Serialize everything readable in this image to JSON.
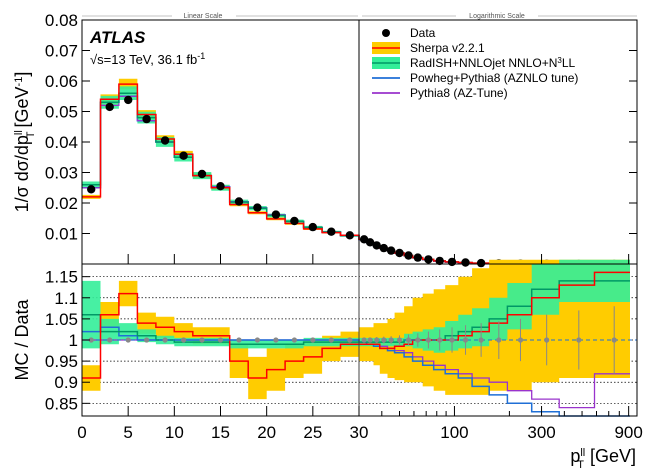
{
  "chart_data": {
    "type": "line",
    "scale_labels": {
      "linear": "Linear Scale",
      "log": "Logarithmic Scale"
    },
    "experiment_label": "ATLAS",
    "energy_label": "√s=13 TeV, 36.1 fb",
    "energy_label_superscript": "-1",
    "top_panel": {
      "ylabel": "1/σ dσ/dp",
      "ylabel_sup": "ll",
      "ylabel_sub": "T",
      "ylabel_tail": "[GeV",
      "ylabel_tail_sup": "-1",
      "ylabel_end": "]",
      "ylim": [
        0,
        0.08
      ],
      "yticks": [
        "0.01",
        "0.02",
        "0.03",
        "0.04",
        "0.05",
        "0.06",
        "0.07",
        "0.08"
      ]
    },
    "ratio_panel": {
      "ylabel": "MC / Data",
      "ylim": [
        0.82,
        1.18
      ],
      "yticks": [
        "0.85",
        "0.9",
        "0.95",
        "1",
        "1.05",
        "1.1",
        "1.15"
      ]
    },
    "x_axis": {
      "label": "p",
      "label_sup": "ll",
      "label_sub": "T",
      "label_tail": "[GeV]",
      "linear_range": [
        0,
        30
      ],
      "log_range": [
        30,
        1000
      ],
      "linear_ticks": [
        "0",
        "5",
        "10",
        "15",
        "20",
        "25",
        "30"
      ],
      "log_ticks": [
        "100",
        "300",
        "900"
      ]
    },
    "legend": [
      {
        "name": "Data",
        "style": "marker",
        "color": "#000000"
      },
      {
        "name": "Sherpa v2.2.1",
        "style": "band",
        "color": "#ff0000",
        "band_color": "#ffcc00"
      },
      {
        "name": "RadISH+NNLOjet NNLO+N",
        "name_sup": "3",
        "name_tail": "LL",
        "style": "band",
        "color": "#009966",
        "band_color": "#33ee99"
      },
      {
        "name": "Powheg+Pythia8 (AZNLO tune)",
        "style": "line",
        "color": "#1f6fd6"
      },
      {
        "name": "Pythia8 (AZ-Tune)",
        "style": "line",
        "color": "#9933cc"
      }
    ],
    "x": [
      1,
      3,
      5,
      7,
      9,
      11,
      13,
      15,
      17,
      19,
      21,
      23,
      25,
      27,
      29,
      32,
      34.5,
      37.5,
      41,
      45,
      50,
      56,
      63,
      72,
      83,
      97,
      115,
      140,
      175,
      230,
      320,
      480,
      750
    ],
    "bin_edges": [
      0,
      2,
      4,
      6,
      8,
      10,
      12,
      14,
      16,
      18,
      20,
      22,
      24,
      26,
      28,
      30,
      33,
      36,
      39,
      43,
      47,
      53,
      59,
      67,
      77,
      89,
      105,
      125,
      155,
      195,
      265,
      375,
      585,
      915
    ],
    "series": [
      {
        "name": "Data",
        "type": "scatter",
        "color": "#000000",
        "values": [
          0.0245,
          0.0515,
          0.0538,
          0.0475,
          0.0405,
          0.0355,
          0.0295,
          0.0255,
          0.0205,
          0.0185,
          0.0162,
          0.0141,
          0.0121,
          0.0106,
          0.0094,
          0.0081,
          0.0071,
          0.0061,
          0.0052,
          0.0044,
          0.0036,
          0.0028,
          0.0021,
          0.0015,
          0.001,
          0.0007,
          0.0005,
          0.0003,
          0.0002,
          0.0001,
          5e-05,
          2e-05,
          1e-05
        ]
      },
      {
        "name": "Sherpa v2.2.1",
        "type": "line",
        "color": "#ff0000",
        "values": [
          0.022,
          0.054,
          0.059,
          0.049,
          0.041,
          0.036,
          0.029,
          0.025,
          0.0195,
          0.0168,
          0.0148,
          0.0133,
          0.0115,
          0.0103,
          0.0094,
          0.0081,
          0.0071,
          0.0061,
          0.0052,
          0.0044,
          0.0036,
          0.0028,
          0.0021,
          0.0015,
          0.001,
          0.0007,
          0.0005,
          0.0003,
          0.0002,
          0.0001,
          5e-05,
          2e-05,
          1e-05
        ]
      },
      {
        "name": "RadISH+NNLOjet NNLO+N3LL",
        "type": "line",
        "color": "#009966",
        "values": [
          0.026,
          0.053,
          0.056,
          0.048,
          0.04,
          0.035,
          0.029,
          0.025,
          0.0203,
          0.0183,
          0.0159,
          0.014,
          0.012,
          0.0105,
          0.0093,
          0.0081,
          0.0071,
          0.0061,
          0.0052,
          0.0044,
          0.0036,
          0.0028,
          0.0021,
          0.0015,
          0.001,
          0.0007,
          0.0005,
          0.0003,
          0.0002,
          0.0001,
          5e-05,
          2e-05,
          1e-05
        ]
      },
      {
        "name": "Powheg+Pythia8 (AZNLO tune)",
        "type": "line",
        "color": "#1f6fd6",
        "values": [
          0.025,
          0.053,
          0.055,
          0.047,
          0.04,
          0.035,
          0.029,
          0.0253,
          0.0204,
          0.0184,
          0.0161,
          0.014,
          0.012,
          0.0105,
          0.0093,
          0.008,
          0.007,
          0.006,
          0.0051,
          0.0043,
          0.0035,
          0.0027,
          0.002,
          0.0014,
          0.0009,
          0.0006,
          0.0004,
          0.0002,
          0.0001,
          7e-05,
          3e-05,
          1e-05,
          5e-06
        ]
      },
      {
        "name": "Pythia8 (AZ-Tune)",
        "type": "line",
        "color": "#9933cc",
        "values": [
          0.025,
          0.052,
          0.055,
          0.047,
          0.04,
          0.035,
          0.029,
          0.0253,
          0.0204,
          0.0184,
          0.0161,
          0.014,
          0.012,
          0.0105,
          0.0093,
          0.008,
          0.007,
          0.006,
          0.0051,
          0.0043,
          0.0035,
          0.0027,
          0.002,
          0.0014,
          0.0009,
          0.0006,
          0.0004,
          0.0002,
          0.0001,
          7e-05,
          3e-05,
          1e-05,
          5e-06
        ]
      }
    ],
    "ratio": {
      "data_errors": [
        0.004,
        0.004,
        0.003,
        0.004,
        0.004,
        0.004,
        0.004,
        0.004,
        0.004,
        0.004,
        0.004,
        0.004,
        0.004,
        0.004,
        0.004,
        0.005,
        0.006,
        0.007,
        0.008,
        0.009,
        0.011,
        0.013,
        0.016,
        0.02,
        0.025,
        0.03,
        0.035,
        0.04,
        0.045,
        0.05,
        0.06,
        0.07,
        0.08
      ],
      "sherpa": [
        0.91,
        1.06,
        1.11,
        1.04,
        1.03,
        1.02,
        1.01,
        1.01,
        0.95,
        0.91,
        0.93,
        0.95,
        0.96,
        0.98,
        0.99,
        0.99,
        0.99,
        0.99,
        0.98,
        0.98,
        0.985,
        0.99,
        1.0,
        1.0,
        1.0,
        1.0,
        1.01,
        1.02,
        1.04,
        1.06,
        1.1,
        1.13,
        1.16
      ],
      "sherpa_band": [
        0.03,
        0.03,
        0.03,
        0.025,
        0.025,
        0.02,
        0.02,
        0.02,
        0.04,
        0.05,
        0.05,
        0.04,
        0.04,
        0.03,
        0.03,
        0.04,
        0.04,
        0.05,
        0.06,
        0.07,
        0.08,
        0.09,
        0.1,
        0.11,
        0.12,
        0.13,
        0.14,
        0.15,
        0.16,
        0.18,
        0.2,
        0.22,
        0.25
      ],
      "radish": [
        1.06,
        1.02,
        1.02,
        1.01,
        1.0,
        0.995,
        0.995,
        0.995,
        0.99,
        0.99,
        0.99,
        0.99,
        0.995,
        0.995,
        0.995,
        0.995,
        0.995,
        0.995,
        0.995,
        0.995,
        0.995,
        1.0,
        1.0,
        1.0,
        1.0,
        1.01,
        1.02,
        1.03,
        1.05,
        1.08,
        1.12,
        1.14,
        1.14
      ],
      "radish_band": [
        0.08,
        0.03,
        0.02,
        0.015,
        0.01,
        0.01,
        0.01,
        0.01,
        0.01,
        0.01,
        0.01,
        0.01,
        0.01,
        0.01,
        0.01,
        0.01,
        0.01,
        0.01,
        0.01,
        0.01,
        0.01,
        0.015,
        0.02,
        0.025,
        0.03,
        0.035,
        0.04,
        0.045,
        0.05,
        0.055,
        0.06,
        0.05,
        0.05
      ],
      "powheg": [
        1.02,
        1.03,
        1.01,
        1.0,
        1.0,
        1.0,
        1.0,
        1.0,
        1.0,
        1.0,
        1.0,
        1.0,
        1.0,
        1.0,
        1.0,
        0.995,
        0.99,
        0.985,
        0.98,
        0.975,
        0.97,
        0.96,
        0.95,
        0.94,
        0.93,
        0.92,
        0.91,
        0.89,
        0.87,
        0.85,
        0.83,
        0.82,
        0.82
      ],
      "pythia": [
        1.0,
        1.0,
        1.0,
        1.0,
        1.0,
        1.0,
        1.0,
        1.0,
        1.0,
        1.0,
        1.0,
        1.0,
        1.0,
        1.0,
        1.0,
        0.995,
        0.99,
        0.99,
        0.985,
        0.98,
        0.975,
        0.97,
        0.96,
        0.95,
        0.94,
        0.93,
        0.92,
        0.91,
        0.9,
        0.88,
        0.86,
        0.84,
        0.92
      ]
    }
  }
}
